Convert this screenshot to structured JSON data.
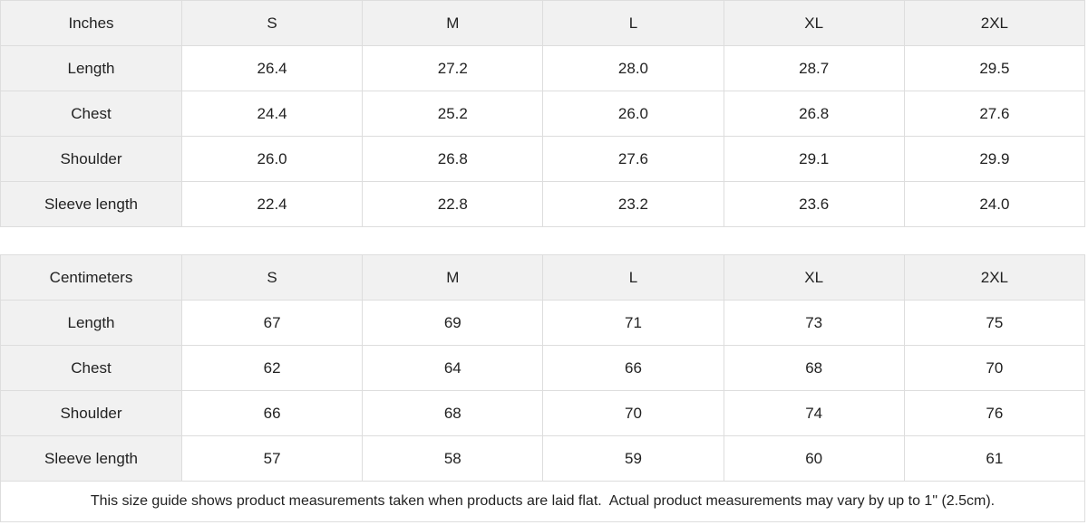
{
  "colors": {
    "header_bg": "#f1f1f1",
    "border": "#dddddd",
    "text": "#222222",
    "cell_bg": "#ffffff"
  },
  "tables": [
    {
      "unit_label": "Inches",
      "sizes": [
        "S",
        "M",
        "L",
        "XL",
        "2XL"
      ],
      "rows": [
        {
          "label": "Length",
          "values": [
            "26.4",
            "27.2",
            "28.0",
            "28.7",
            "29.5"
          ]
        },
        {
          "label": "Chest",
          "values": [
            "24.4",
            "25.2",
            "26.0",
            "26.8",
            "27.6"
          ]
        },
        {
          "label": "Shoulder",
          "values": [
            "26.0",
            "26.8",
            "27.6",
            "29.1",
            "29.9"
          ]
        },
        {
          "label": "Sleeve length",
          "values": [
            "22.4",
            "22.8",
            "23.2",
            "23.6",
            "24.0"
          ]
        }
      ]
    },
    {
      "unit_label": "Centimeters",
      "sizes": [
        "S",
        "M",
        "L",
        "XL",
        "2XL"
      ],
      "rows": [
        {
          "label": "Length",
          "values": [
            "67",
            "69",
            "71",
            "73",
            "75"
          ]
        },
        {
          "label": "Chest",
          "values": [
            "62",
            "64",
            "66",
            "68",
            "70"
          ]
        },
        {
          "label": "Shoulder",
          "values": [
            "66",
            "68",
            "70",
            "74",
            "76"
          ]
        },
        {
          "label": "Sleeve length",
          "values": [
            "57",
            "58",
            "59",
            "60",
            "61"
          ]
        }
      ]
    }
  ],
  "footer_note": "This size guide shows product measurements taken when products are laid flat.  Actual product measurements may vary by up to 1\" (2.5cm)."
}
